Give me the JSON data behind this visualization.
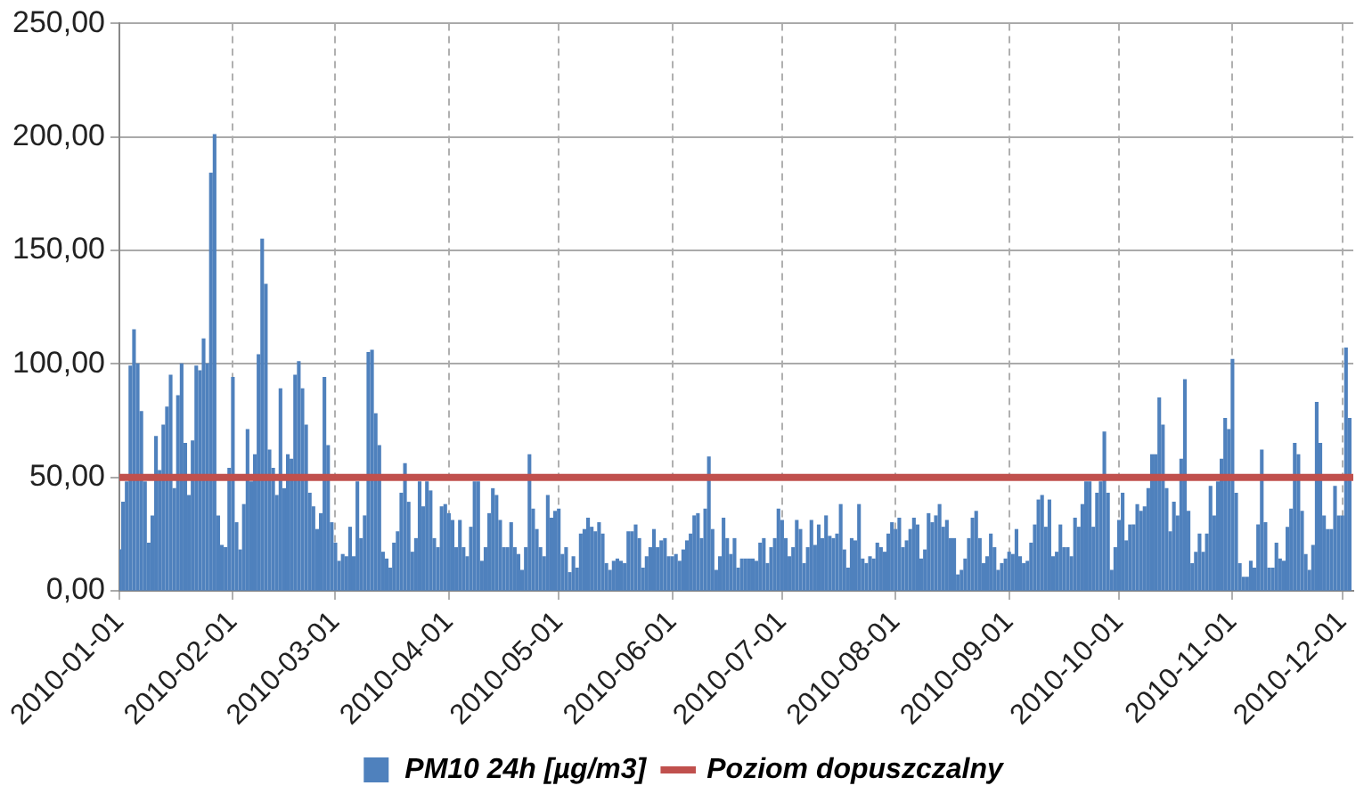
{
  "chart_data": {
    "type": "bar",
    "x": [
      "2010-01-01",
      "2010-01-02",
      "2010-01-03",
      "2010-01-04",
      "2010-01-05",
      "2010-01-06",
      "2010-01-07",
      "2010-01-08",
      "2010-01-09",
      "2010-01-10",
      "2010-01-11",
      "2010-01-12",
      "2010-01-13",
      "2010-01-14",
      "2010-01-15",
      "2010-01-16",
      "2010-01-17",
      "2010-01-18",
      "2010-01-19",
      "2010-01-20",
      "2010-01-21",
      "2010-01-22",
      "2010-01-23",
      "2010-01-24",
      "2010-01-25",
      "2010-01-26",
      "2010-01-27",
      "2010-01-28",
      "2010-01-29",
      "2010-01-30",
      "2010-01-31",
      "2010-02-01",
      "2010-02-02",
      "2010-02-03",
      "2010-02-04",
      "2010-02-05",
      "2010-02-06",
      "2010-02-07",
      "2010-02-08",
      "2010-02-09",
      "2010-02-10",
      "2010-02-11",
      "2010-02-12",
      "2010-02-13",
      "2010-02-14",
      "2010-02-15",
      "2010-02-16",
      "2010-02-17",
      "2010-02-18",
      "2010-02-19",
      "2010-02-20",
      "2010-02-21",
      "2010-02-22",
      "2010-02-23",
      "2010-02-24",
      "2010-02-25",
      "2010-02-26",
      "2010-02-27",
      "2010-02-28",
      "2010-03-01",
      "2010-03-02",
      "2010-03-03",
      "2010-03-04",
      "2010-03-05",
      "2010-03-06",
      "2010-03-07",
      "2010-03-08",
      "2010-03-09",
      "2010-03-10",
      "2010-03-11",
      "2010-03-12",
      "2010-03-13",
      "2010-03-14",
      "2010-03-15",
      "2010-03-16",
      "2010-03-17",
      "2010-03-18",
      "2010-03-19",
      "2010-03-20",
      "2010-03-21",
      "2010-03-22",
      "2010-03-23",
      "2010-03-24",
      "2010-03-25",
      "2010-03-26",
      "2010-03-27",
      "2010-03-28",
      "2010-03-29",
      "2010-03-30",
      "2010-03-31",
      "2010-04-01",
      "2010-04-02",
      "2010-04-03",
      "2010-04-04",
      "2010-04-05",
      "2010-04-06",
      "2010-04-07",
      "2010-04-08",
      "2010-04-09",
      "2010-04-10",
      "2010-04-11",
      "2010-04-12",
      "2010-04-13",
      "2010-04-14",
      "2010-04-15",
      "2010-04-16",
      "2010-04-17",
      "2010-04-18",
      "2010-04-19",
      "2010-04-20",
      "2010-04-21",
      "2010-04-22",
      "2010-04-23",
      "2010-04-24",
      "2010-04-25",
      "2010-04-26",
      "2010-04-27",
      "2010-04-28",
      "2010-04-29",
      "2010-04-30",
      "2010-05-01",
      "2010-05-02",
      "2010-05-03",
      "2010-05-04",
      "2010-05-05",
      "2010-05-06",
      "2010-05-07",
      "2010-05-08",
      "2010-05-09",
      "2010-05-10",
      "2010-05-11",
      "2010-05-12",
      "2010-05-13",
      "2010-05-14",
      "2010-05-15",
      "2010-05-16",
      "2010-05-17",
      "2010-05-18",
      "2010-05-19",
      "2010-05-20",
      "2010-05-21",
      "2010-05-22",
      "2010-05-23",
      "2010-05-24",
      "2010-05-25",
      "2010-05-26",
      "2010-05-27",
      "2010-05-28",
      "2010-05-29",
      "2010-05-30",
      "2010-05-31",
      "2010-06-01",
      "2010-06-02",
      "2010-06-03",
      "2010-06-04",
      "2010-06-05",
      "2010-06-06",
      "2010-06-07",
      "2010-06-08",
      "2010-06-09",
      "2010-06-10",
      "2010-06-11",
      "2010-06-12",
      "2010-06-13",
      "2010-06-14",
      "2010-06-15",
      "2010-06-16",
      "2010-06-17",
      "2010-06-18",
      "2010-06-19",
      "2010-06-20",
      "2010-06-21",
      "2010-06-22",
      "2010-06-23",
      "2010-06-24",
      "2010-06-25",
      "2010-06-26",
      "2010-06-27",
      "2010-06-28",
      "2010-06-29",
      "2010-06-30",
      "2010-07-01",
      "2010-07-02",
      "2010-07-03",
      "2010-07-04",
      "2010-07-05",
      "2010-07-06",
      "2010-07-07",
      "2010-07-08",
      "2010-07-09",
      "2010-07-10",
      "2010-07-11",
      "2010-07-12",
      "2010-07-13",
      "2010-07-14",
      "2010-07-15",
      "2010-07-16",
      "2010-07-17",
      "2010-07-18",
      "2010-07-19",
      "2010-07-20",
      "2010-07-21",
      "2010-07-22",
      "2010-07-23",
      "2010-07-24",
      "2010-07-25",
      "2010-07-26",
      "2010-07-27",
      "2010-07-28",
      "2010-07-29",
      "2010-07-30",
      "2010-07-31",
      "2010-08-01",
      "2010-08-02",
      "2010-08-03",
      "2010-08-04",
      "2010-08-05",
      "2010-08-06",
      "2010-08-07",
      "2010-08-08",
      "2010-08-09",
      "2010-08-10",
      "2010-08-11",
      "2010-08-12",
      "2010-08-13",
      "2010-08-14",
      "2010-08-15",
      "2010-08-16",
      "2010-08-17",
      "2010-08-18",
      "2010-08-19",
      "2010-08-20",
      "2010-08-21",
      "2010-08-22",
      "2010-08-23",
      "2010-08-24",
      "2010-08-25",
      "2010-08-26",
      "2010-08-27",
      "2010-08-28",
      "2010-08-29",
      "2010-08-30",
      "2010-08-31",
      "2010-09-01",
      "2010-09-02",
      "2010-09-03",
      "2010-09-04",
      "2010-09-05",
      "2010-09-06",
      "2010-09-07",
      "2010-09-08",
      "2010-09-09",
      "2010-09-10",
      "2010-09-11",
      "2010-09-12",
      "2010-09-13",
      "2010-09-14",
      "2010-09-15",
      "2010-09-16",
      "2010-09-17",
      "2010-09-18",
      "2010-09-19",
      "2010-09-20",
      "2010-09-21",
      "2010-09-22",
      "2010-09-23",
      "2010-09-24",
      "2010-09-25",
      "2010-09-26",
      "2010-09-27",
      "2010-09-28",
      "2010-09-29",
      "2010-09-30",
      "2010-10-01",
      "2010-10-02",
      "2010-10-03",
      "2010-10-04",
      "2010-10-05",
      "2010-10-06",
      "2010-10-07",
      "2010-10-08",
      "2010-10-09",
      "2010-10-10",
      "2010-10-11",
      "2010-10-12",
      "2010-10-13",
      "2010-10-14",
      "2010-10-15",
      "2010-10-16",
      "2010-10-17",
      "2010-10-18",
      "2010-10-19",
      "2010-10-20",
      "2010-10-21",
      "2010-10-22",
      "2010-10-23",
      "2010-10-24",
      "2010-10-25",
      "2010-10-26",
      "2010-10-27",
      "2010-10-28",
      "2010-10-29",
      "2010-10-30",
      "2010-10-31",
      "2010-11-01",
      "2010-11-02",
      "2010-11-03",
      "2010-11-04",
      "2010-11-05",
      "2010-11-06",
      "2010-11-07",
      "2010-11-08",
      "2010-11-09",
      "2010-11-10",
      "2010-11-11",
      "2010-11-12",
      "2010-11-13",
      "2010-11-14",
      "2010-11-15",
      "2010-11-16",
      "2010-11-17",
      "2010-11-18",
      "2010-11-19",
      "2010-11-20",
      "2010-11-21",
      "2010-11-22",
      "2010-11-23",
      "2010-11-24",
      "2010-11-25",
      "2010-11-26",
      "2010-11-27",
      "2010-11-28",
      "2010-11-29",
      "2010-11-30",
      "2010-12-01",
      "2010-12-02",
      "2010-12-03"
    ],
    "series": [
      {
        "name": "PM10 24h [µg/m3]",
        "color": "#4f81bd",
        "values": [
          18,
          39,
          48,
          99,
          115,
          100,
          79,
          48,
          21,
          33,
          68,
          53,
          73,
          81,
          95,
          45,
          86,
          100,
          65,
          42,
          66,
          99,
          97,
          111,
          100,
          184,
          201,
          33,
          20,
          19,
          54,
          94,
          30,
          18,
          38,
          71,
          48,
          60,
          104,
          155,
          135,
          62,
          54,
          42,
          89,
          45,
          60,
          58,
          95,
          101,
          89,
          73,
          43,
          37,
          27,
          34,
          94,
          64,
          30,
          21,
          13,
          16,
          15,
          28,
          15,
          48,
          23,
          33,
          105,
          106,
          78,
          64,
          17,
          14,
          10,
          21,
          26,
          43,
          56,
          39,
          17,
          23,
          48,
          37,
          48,
          44,
          23,
          19,
          37,
          38,
          34,
          31,
          19,
          31,
          19,
          15,
          28,
          48,
          48,
          13,
          19,
          34,
          45,
          42,
          31,
          19,
          19,
          30,
          19,
          16,
          9,
          19,
          60,
          36,
          27,
          19,
          15,
          42,
          32,
          35,
          36,
          16,
          19,
          8,
          15,
          10,
          25,
          27,
          32,
          28,
          26,
          30,
          25,
          12,
          9,
          13,
          14,
          13,
          12,
          26,
          26,
          29,
          23,
          10,
          15,
          19,
          27,
          19,
          22,
          23,
          15,
          15,
          16,
          13,
          18,
          22,
          25,
          33,
          34,
          23,
          36,
          59,
          27,
          9,
          15,
          32,
          23,
          16,
          23,
          10,
          14,
          14,
          14,
          14,
          13,
          21,
          23,
          12,
          19,
          23,
          36,
          31,
          23,
          15,
          19,
          31,
          27,
          12,
          19,
          31,
          20,
          29,
          23,
          33,
          24,
          23,
          25,
          38,
          18,
          10,
          23,
          22,
          38,
          14,
          12,
          15,
          14,
          21,
          19,
          17,
          25,
          30,
          27,
          32,
          19,
          22,
          27,
          32,
          29,
          14,
          18,
          34,
          30,
          33,
          38,
          28,
          31,
          23,
          23,
          7,
          9,
          14,
          23,
          32,
          35,
          23,
          12,
          15,
          25,
          19,
          9,
          12,
          14,
          17,
          16,
          27,
          15,
          12,
          13,
          21,
          29,
          40,
          42,
          28,
          40,
          15,
          17,
          29,
          19,
          19,
          15,
          32,
          28,
          38,
          48,
          48,
          28,
          43,
          48,
          70,
          43,
          9,
          19,
          31,
          43,
          22,
          29,
          29,
          38,
          35,
          37,
          45,
          60,
          60,
          85,
          73,
          45,
          26,
          39,
          33,
          58,
          93,
          35,
          12,
          17,
          25,
          17,
          25,
          46,
          33,
          48,
          58,
          76,
          71,
          102,
          43,
          12,
          6,
          6,
          13,
          10,
          29,
          62,
          30,
          10,
          10,
          21,
          14,
          13,
          28,
          36,
          65,
          60,
          35,
          16,
          9,
          20,
          83,
          65,
          33,
          27,
          27,
          46,
          33,
          33,
          107,
          76
        ]
      }
    ],
    "xlim": [
      "2010-01-01",
      "2010-12-04"
    ],
    "xticks": [
      "2010-01-01",
      "2010-02-01",
      "2010-03-01",
      "2010-04-01",
      "2010-05-01",
      "2010-06-01",
      "2010-07-01",
      "2010-08-01",
      "2010-09-01",
      "2010-10-01",
      "2010-11-01",
      "2010-12-01"
    ],
    "ylim": [
      0,
      250
    ],
    "yticks": [
      {
        "value": 0,
        "label": "0,00"
      },
      {
        "value": 50,
        "label": "50,00"
      },
      {
        "value": 100,
        "label": "100,00"
      },
      {
        "value": 150,
        "label": "150,00"
      },
      {
        "value": 200,
        "label": "200,00"
      },
      {
        "value": 250,
        "label": "250,00"
      }
    ],
    "ref_lines": [
      {
        "axis": "y",
        "value": 50,
        "label": "Poziom dopuszczalny",
        "color": "#c0504d"
      }
    ],
    "grid": true,
    "legend": "bottom"
  }
}
